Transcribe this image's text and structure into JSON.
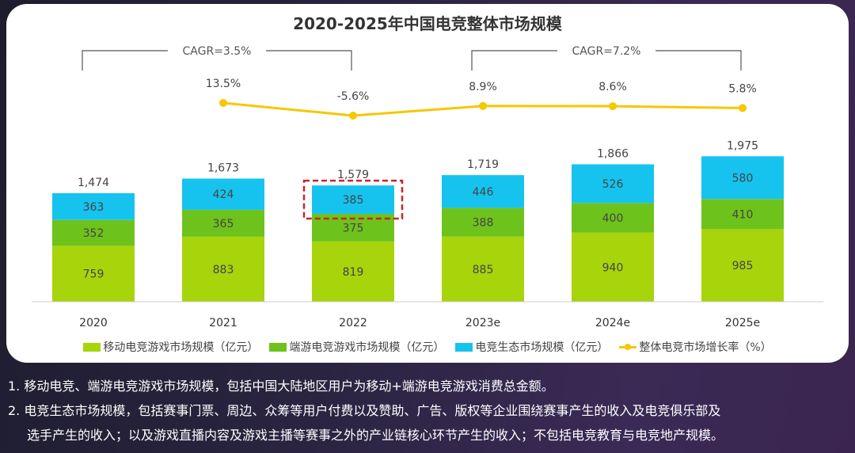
{
  "chart_data": {
    "type": "bar",
    "stacked": true,
    "title": "2020-2025年中国电竞整体市场规模",
    "categories": [
      "2020",
      "2021",
      "2022",
      "2023e",
      "2024e",
      "2025e"
    ],
    "series": [
      {
        "name": "移动电竞游戏市场规模（亿元）",
        "color": "#a8d40c",
        "values": [
          759,
          883,
          819,
          885,
          940,
          985
        ]
      },
      {
        "name": "端游电竞游戏市场规模（亿元）",
        "color": "#6ec21c",
        "values": [
          352,
          365,
          375,
          388,
          400,
          410
        ]
      },
      {
        "name": "电竞生态市场规模（亿元）",
        "color": "#16c3ef",
        "values": [
          363,
          424,
          385,
          446,
          526,
          580
        ]
      }
    ],
    "totals": [
      "1,474",
      "1,673",
      "1,579",
      "1,719",
      "1,866",
      "1,975"
    ],
    "line_series": {
      "name": "整体电竞市场增长率（%）",
      "color": "#f5c800",
      "x": [
        "2021",
        "2022",
        "2023e",
        "2024e",
        "2025e"
      ],
      "values": [
        13.5,
        -5.6,
        8.9,
        8.6,
        5.8
      ],
      "labels": [
        "13.5%",
        "-5.6%",
        "8.9%",
        "8.6%",
        "5.8%"
      ]
    },
    "annotations": [
      {
        "text": "CAGR=3.5%",
        "from": "2020",
        "to": "2022"
      },
      {
        "text": "CAGR=7.2%",
        "from": "2023e",
        "to": "2025e"
      }
    ],
    "highlight": {
      "category": "2022",
      "series": "电竞生态市场规模（亿元）",
      "color": "#c8232c"
    },
    "legend_position": "bottom",
    "grid": false
  },
  "notes": [
    "1. 移动电竞、端游电竞游戏市场规模，包括中国大陆地区用户为移动+端游电竞游戏消费总金额。",
    "2. 电竞生态市场规模，包括赛事门票、周边、众筹等用户付费以及赞助、广告、版权等企业围绕赛事产生的收入及电竞俱乐部及",
    "选手产生的收入；以及游戏直播内容及游戏主播等赛事之外的产业链核心环节产生的收入；不包括电竞教育与电竞地产规模。"
  ]
}
